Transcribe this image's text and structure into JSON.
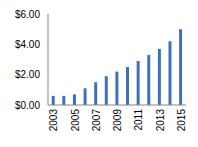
{
  "chart_data": {
    "type": "bar",
    "categories": [
      "2003",
      null,
      "2005",
      null,
      "2007",
      null,
      "2009",
      null,
      "2011",
      null,
      "2013",
      null,
      "2015"
    ],
    "values": [
      0.6,
      0.6,
      0.7,
      1.1,
      1.5,
      1.9,
      2.2,
      2.5,
      2.9,
      3.3,
      3.7,
      4.2,
      5.0
    ],
    "color": "#3d72b8",
    "ylim": [
      0,
      6
    ],
    "yticks": [
      {
        "value": 0,
        "label": "$0.00"
      },
      {
        "value": 2,
        "label": "$2.00"
      },
      {
        "value": 4,
        "label": "$4.00"
      },
      {
        "value": 6,
        "label": "$6.00"
      }
    ],
    "grid": false
  }
}
